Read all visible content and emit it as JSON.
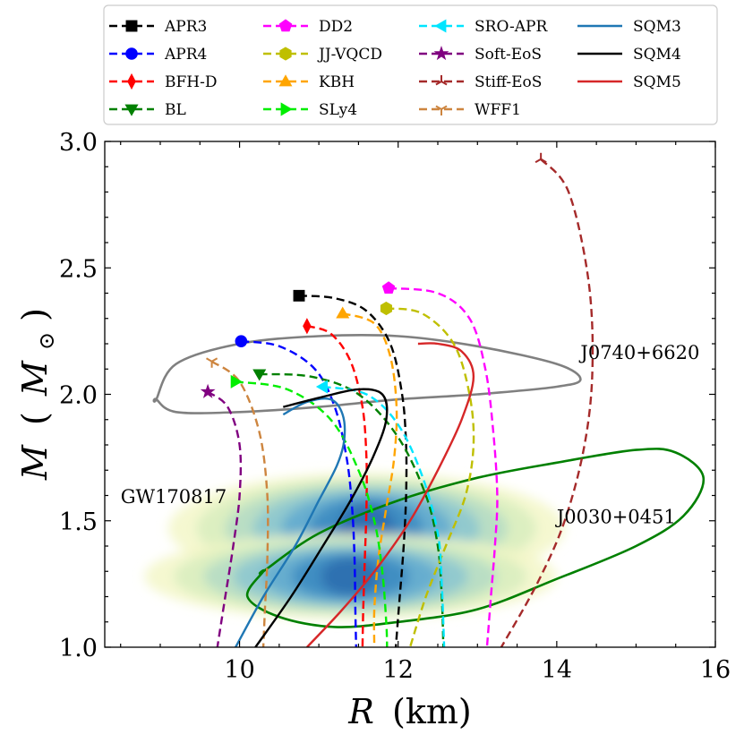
{
  "chart_data": {
    "type": "line",
    "xlabel_var": "R",
    "xlabel_unit": "(km)",
    "ylabel_var": "M",
    "ylabel_unit": "M",
    "ylabel_sub": "⊙",
    "xlim": [
      8.3,
      16.0
    ],
    "ylim": [
      1.0,
      3.0
    ],
    "x_ticks": [
      10,
      12,
      14,
      16
    ],
    "y_ticks": [
      1.0,
      1.5,
      2.0,
      2.5,
      3.0
    ],
    "x_tick_labels": [
      "10",
      "12",
      "14",
      "16"
    ],
    "y_tick_labels": [
      "1.0",
      "1.5",
      "2.0",
      "2.5",
      "3.0"
    ],
    "annotations": [
      {
        "text": "J0740+6620",
        "x": 14.3,
        "y": 2.14
      },
      {
        "text": "GW170817",
        "x": 8.5,
        "y": 1.57
      },
      {
        "text": "J0030+0451",
        "x": 14.0,
        "y": 1.49
      }
    ],
    "series": [
      {
        "name": "APR3",
        "color": "#000000",
        "dash": true,
        "marker": "square",
        "points": [
          [
            10.75,
            2.39
          ],
          [
            11.2,
            2.38
          ],
          [
            11.6,
            2.33
          ],
          [
            11.9,
            2.2
          ],
          [
            12.05,
            2.0
          ],
          [
            12.1,
            1.8
          ],
          [
            12.1,
            1.6
          ],
          [
            12.07,
            1.4
          ],
          [
            12.02,
            1.2
          ],
          [
            11.97,
            1.0
          ]
        ]
      },
      {
        "name": "APR4",
        "color": "#0000ff",
        "dash": true,
        "marker": "circle",
        "points": [
          [
            10.02,
            2.21
          ],
          [
            10.5,
            2.19
          ],
          [
            10.95,
            2.1
          ],
          [
            11.2,
            1.95
          ],
          [
            11.35,
            1.75
          ],
          [
            11.42,
            1.55
          ],
          [
            11.45,
            1.35
          ],
          [
            11.46,
            1.15
          ],
          [
            11.47,
            1.0
          ]
        ]
      },
      {
        "name": "BFH-D",
        "color": "#ff0000",
        "dash": true,
        "marker": "diamond",
        "points": [
          [
            10.85,
            2.27
          ],
          [
            11.15,
            2.24
          ],
          [
            11.4,
            2.13
          ],
          [
            11.55,
            1.95
          ],
          [
            11.6,
            1.75
          ],
          [
            11.6,
            1.55
          ],
          [
            11.58,
            1.35
          ],
          [
            11.56,
            1.15
          ],
          [
            11.55,
            1.0
          ]
        ]
      },
      {
        "name": "BL",
        "color": "#008000",
        "dash": true,
        "marker": "triangle-down",
        "points": [
          [
            10.25,
            2.08
          ],
          [
            10.9,
            2.07
          ],
          [
            11.5,
            2.0
          ],
          [
            12.0,
            1.83
          ],
          [
            12.35,
            1.6
          ],
          [
            12.5,
            1.4
          ],
          [
            12.55,
            1.2
          ],
          [
            12.57,
            1.0
          ]
        ]
      },
      {
        "name": "DD2",
        "color": "#ff00ff",
        "dash": true,
        "marker": "pentagon",
        "points": [
          [
            11.88,
            2.42
          ],
          [
            12.5,
            2.4
          ],
          [
            12.9,
            2.3
          ],
          [
            13.1,
            2.1
          ],
          [
            13.2,
            1.85
          ],
          [
            13.25,
            1.6
          ],
          [
            13.22,
            1.4
          ],
          [
            13.17,
            1.2
          ],
          [
            13.12,
            1.0
          ]
        ]
      },
      {
        "name": "JJ-VQCD",
        "color": "#bfbf00",
        "dash": true,
        "marker": "hexagon",
        "points": [
          [
            11.85,
            2.34
          ],
          [
            12.3,
            2.32
          ],
          [
            12.7,
            2.2
          ],
          [
            12.9,
            2.0
          ],
          [
            12.95,
            1.8
          ],
          [
            12.85,
            1.6
          ],
          [
            12.6,
            1.4
          ],
          [
            12.35,
            1.2
          ],
          [
            12.15,
            1.0
          ]
        ]
      },
      {
        "name": "KBH",
        "color": "#ffa500",
        "dash": true,
        "marker": "triangle-up",
        "points": [
          [
            11.3,
            2.32
          ],
          [
            11.7,
            2.28
          ],
          [
            11.9,
            2.15
          ],
          [
            11.98,
            1.95
          ],
          [
            11.95,
            1.75
          ],
          [
            11.85,
            1.55
          ],
          [
            11.75,
            1.35
          ],
          [
            11.7,
            1.15
          ],
          [
            11.7,
            1.0
          ]
        ]
      },
      {
        "name": "SLy4",
        "color": "#00ee00",
        "dash": true,
        "marker": "triangle-right",
        "points": [
          [
            9.95,
            2.05
          ],
          [
            10.6,
            2.02
          ],
          [
            11.15,
            1.9
          ],
          [
            11.5,
            1.7
          ],
          [
            11.7,
            1.5
          ],
          [
            11.8,
            1.3
          ],
          [
            11.85,
            1.1
          ],
          [
            11.86,
            1.0
          ]
        ]
      },
      {
        "name": "SRO-APR",
        "color": "#00e5ff",
        "dash": true,
        "marker": "triangle-left",
        "points": [
          [
            11.05,
            2.03
          ],
          [
            11.6,
            2.0
          ],
          [
            12.0,
            1.88
          ],
          [
            12.3,
            1.68
          ],
          [
            12.5,
            1.45
          ],
          [
            12.55,
            1.25
          ],
          [
            12.58,
            1.0
          ]
        ]
      },
      {
        "name": "Soft-EoS",
        "color": "#800080",
        "dash": true,
        "marker": "star",
        "points": [
          [
            9.6,
            2.01
          ],
          [
            9.85,
            1.95
          ],
          [
            10.0,
            1.8
          ],
          [
            10.0,
            1.6
          ],
          [
            9.92,
            1.4
          ],
          [
            9.82,
            1.2
          ],
          [
            9.72,
            1.0
          ]
        ]
      },
      {
        "name": "Stiff-EoS",
        "color": "#a52a2a",
        "dash": true,
        "marker": "tri",
        "points": [
          [
            13.8,
            2.93
          ],
          [
            14.15,
            2.8
          ],
          [
            14.4,
            2.45
          ],
          [
            14.45,
            2.1
          ],
          [
            14.35,
            1.8
          ],
          [
            14.1,
            1.5
          ],
          [
            13.75,
            1.25
          ],
          [
            13.3,
            1.0
          ]
        ]
      },
      {
        "name": "WFF1",
        "color": "#cd853f",
        "dash": true,
        "marker": "tri-star",
        "points": [
          [
            9.65,
            2.13
          ],
          [
            10.0,
            2.05
          ],
          [
            10.25,
            1.85
          ],
          [
            10.35,
            1.6
          ],
          [
            10.35,
            1.35
          ],
          [
            10.32,
            1.15
          ],
          [
            10.3,
            1.0
          ]
        ]
      },
      {
        "name": "SQM3",
        "color": "#1f77b4",
        "dash": false,
        "marker": "none",
        "points": [
          [
            9.95,
            1.0
          ],
          [
            10.3,
            1.2
          ],
          [
            10.7,
            1.4
          ],
          [
            11.0,
            1.58
          ],
          [
            11.23,
            1.72
          ],
          [
            11.32,
            1.82
          ],
          [
            11.3,
            1.92
          ],
          [
            11.15,
            1.98
          ],
          [
            10.85,
            1.97
          ],
          [
            10.55,
            1.92
          ]
        ]
      },
      {
        "name": "SQM4",
        "color": "#000000",
        "dash": false,
        "marker": "none",
        "points": [
          [
            10.2,
            1.0
          ],
          [
            10.65,
            1.2
          ],
          [
            11.05,
            1.4
          ],
          [
            11.4,
            1.58
          ],
          [
            11.68,
            1.75
          ],
          [
            11.85,
            1.9
          ],
          [
            11.8,
            2.0
          ],
          [
            11.5,
            2.02
          ],
          [
            11.05,
            1.99
          ],
          [
            10.55,
            1.95
          ]
        ]
      },
      {
        "name": "SQM5",
        "color": "#d62728",
        "dash": false,
        "marker": "none",
        "points": [
          [
            10.85,
            1.0
          ],
          [
            11.3,
            1.15
          ],
          [
            11.75,
            1.32
          ],
          [
            12.15,
            1.5
          ],
          [
            12.5,
            1.7
          ],
          [
            12.8,
            1.9
          ],
          [
            12.95,
            2.07
          ],
          [
            12.8,
            2.17
          ],
          [
            12.5,
            2.2
          ],
          [
            12.25,
            2.2
          ]
        ]
      }
    ],
    "contours": [
      {
        "name": "J0740+6620",
        "color": "#808080",
        "points": [
          [
            8.95,
            1.98
          ],
          [
            9.2,
            2.12
          ],
          [
            10.0,
            2.2
          ],
          [
            11.0,
            2.23
          ],
          [
            12.0,
            2.23
          ],
          [
            13.0,
            2.19
          ],
          [
            14.0,
            2.12
          ],
          [
            14.3,
            2.06
          ],
          [
            14.0,
            2.03
          ],
          [
            13.0,
            2.0
          ],
          [
            12.0,
            1.98
          ],
          [
            11.0,
            1.95
          ],
          [
            10.0,
            1.93
          ],
          [
            9.2,
            1.93
          ],
          [
            8.95,
            1.98
          ]
        ]
      },
      {
        "name": "J0030+0451",
        "color": "#008000",
        "points": [
          [
            10.3,
            1.3
          ],
          [
            11.0,
            1.45
          ],
          [
            12.0,
            1.58
          ],
          [
            13.0,
            1.67
          ],
          [
            14.0,
            1.73
          ],
          [
            15.0,
            1.78
          ],
          [
            15.5,
            1.77
          ],
          [
            15.85,
            1.67
          ],
          [
            15.6,
            1.52
          ],
          [
            15.0,
            1.4
          ],
          [
            14.0,
            1.27
          ],
          [
            13.0,
            1.15
          ],
          [
            12.0,
            1.1
          ],
          [
            11.2,
            1.08
          ],
          [
            10.5,
            1.12
          ],
          [
            10.1,
            1.2
          ],
          [
            10.3,
            1.3
          ]
        ]
      }
    ],
    "density": {
      "name": "GW170817",
      "colors": [
        "#f3f7c8",
        "#d8eec0",
        "#b4dcc6",
        "#8ac6d0",
        "#5ea8cf",
        "#3b88c0",
        "#2a6cae"
      ],
      "blobs": [
        {
          "cx": 11.6,
          "cy": 1.47,
          "rx": 2.5,
          "ry": 0.22
        },
        {
          "cx": 11.4,
          "cy": 1.28,
          "rx": 2.6,
          "ry": 0.17
        }
      ]
    },
    "legend_position": "top"
  }
}
